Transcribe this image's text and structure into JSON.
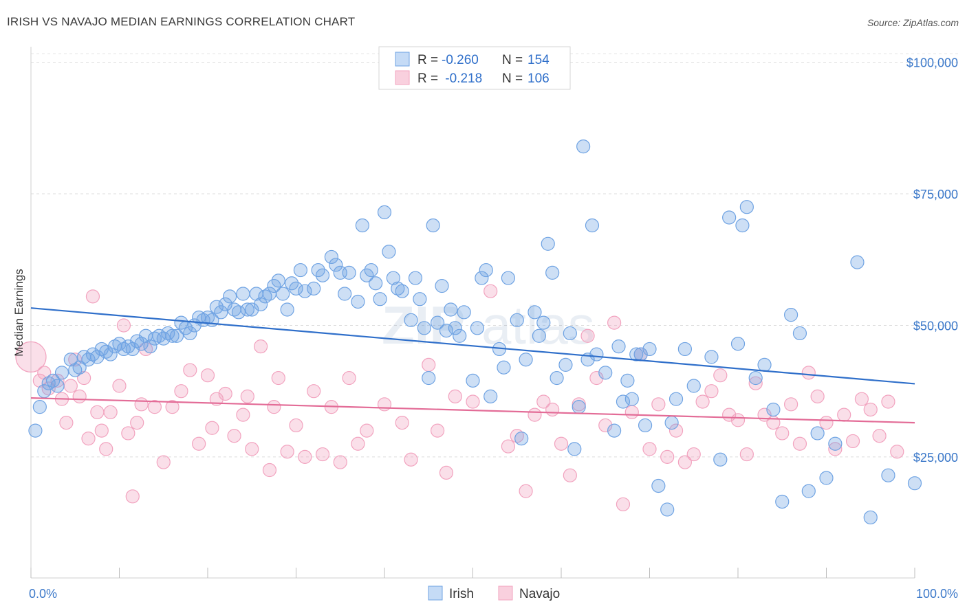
{
  "title": "IRISH VS NAVAJO MEDIAN EARNINGS CORRELATION CHART",
  "source": "Source: ZipAtlas.com",
  "colors": {
    "irish": "#6fa3e3",
    "irish_line": "#2f6fca",
    "navajo": "#f2a3bf",
    "navajo_line": "#e36c97",
    "axis_text": "#3b78c9"
  },
  "legend": {
    "rows": [
      {
        "r_label": "R =",
        "r_value": "-0.260",
        "n_label": "N =",
        "n_value": "154"
      },
      {
        "r_label": "R =",
        "r_value": " -0.218",
        "n_label": "N =",
        "n_value": "106"
      }
    ]
  },
  "chart_data": {
    "type": "scatter",
    "title": "IRISH VS NAVAJO MEDIAN EARNINGS CORRELATION CHART",
    "xlabel": "",
    "ylabel": "Median Earnings",
    "xlim": [
      0,
      100
    ],
    "ylim": [
      2000,
      104000
    ],
    "x_tick_labels": [
      "0.0%",
      "100.0%"
    ],
    "y_ticks": [
      25000,
      50000,
      75000,
      100000
    ],
    "y_tick_labels": [
      "$25,000",
      "$50,000",
      "$75,000",
      "$100,000"
    ],
    "grid": "horizontal dashed",
    "legend_position": "top-center",
    "watermark": "ZIPatlas",
    "series": [
      {
        "name": "Irish",
        "trend": {
          "x": [
            0,
            100
          ],
          "y": [
            53300,
            38900
          ]
        },
        "points": [
          [
            0.5,
            30000
          ],
          [
            1,
            34500
          ],
          [
            1.5,
            37500
          ],
          [
            2,
            39000
          ],
          [
            2.5,
            39500
          ],
          [
            3,
            38500
          ],
          [
            3.5,
            41000
          ],
          [
            4.5,
            43500
          ],
          [
            5,
            41500
          ],
          [
            5.5,
            42000
          ],
          [
            6,
            44000
          ],
          [
            6.5,
            43500
          ],
          [
            7,
            44500
          ],
          [
            7.5,
            44000
          ],
          [
            8,
            45500
          ],
          [
            8.5,
            45000
          ],
          [
            9,
            44500
          ],
          [
            9.5,
            46000
          ],
          [
            10,
            46500
          ],
          [
            10.5,
            45500
          ],
          [
            11,
            46000
          ],
          [
            11.5,
            45500
          ],
          [
            12,
            47000
          ],
          [
            12.5,
            46500
          ],
          [
            13,
            48000
          ],
          [
            13.5,
            46000
          ],
          [
            14,
            47500
          ],
          [
            14.5,
            48000
          ],
          [
            15,
            47500
          ],
          [
            15.5,
            48500
          ],
          [
            16,
            48000
          ],
          [
            16.5,
            48000
          ],
          [
            17,
            50500
          ],
          [
            17.5,
            49500
          ],
          [
            18,
            48500
          ],
          [
            18.5,
            50000
          ],
          [
            19,
            51500
          ],
          [
            19.5,
            51000
          ],
          [
            20,
            51500
          ],
          [
            20.5,
            51000
          ],
          [
            21,
            53500
          ],
          [
            21.5,
            52500
          ],
          [
            22,
            54000
          ],
          [
            22.5,
            55500
          ],
          [
            23,
            53000
          ],
          [
            23.5,
            52500
          ],
          [
            24,
            56000
          ],
          [
            24.5,
            53000
          ],
          [
            25,
            53000
          ],
          [
            25.5,
            56000
          ],
          [
            26,
            54000
          ],
          [
            26.5,
            55500
          ],
          [
            27,
            56000
          ],
          [
            27.5,
            57500
          ],
          [
            28,
            58500
          ],
          [
            28.5,
            56000
          ],
          [
            29,
            53000
          ],
          [
            29.5,
            58000
          ],
          [
            30,
            57000
          ],
          [
            30.5,
            60500
          ],
          [
            31,
            56500
          ],
          [
            32,
            57000
          ],
          [
            32.5,
            60500
          ],
          [
            33,
            59500
          ],
          [
            34,
            63000
          ],
          [
            34.5,
            61500
          ],
          [
            35,
            60000
          ],
          [
            35.5,
            56000
          ],
          [
            36,
            60000
          ],
          [
            37,
            54500
          ],
          [
            37.5,
            69000
          ],
          [
            38,
            59500
          ],
          [
            38.5,
            60500
          ],
          [
            39,
            58000
          ],
          [
            39.5,
            55000
          ],
          [
            40,
            71500
          ],
          [
            40.5,
            64000
          ],
          [
            41,
            59000
          ],
          [
            41.5,
            57000
          ],
          [
            42,
            56500
          ],
          [
            43,
            51000
          ],
          [
            43.5,
            59000
          ],
          [
            44,
            55000
          ],
          [
            44.5,
            49500
          ],
          [
            45,
            40000
          ],
          [
            45.5,
            69000
          ],
          [
            46,
            50500
          ],
          [
            46.5,
            57500
          ],
          [
            47,
            49000
          ],
          [
            47.5,
            53000
          ],
          [
            48,
            49500
          ],
          [
            48.5,
            48000
          ],
          [
            49,
            52500
          ],
          [
            50,
            39500
          ],
          [
            50.5,
            49500
          ],
          [
            51,
            59000
          ],
          [
            51.5,
            60500
          ],
          [
            52,
            36500
          ],
          [
            53,
            45500
          ],
          [
            53.5,
            42000
          ],
          [
            54,
            59000
          ],
          [
            55,
            51000
          ],
          [
            55.5,
            28500
          ],
          [
            56,
            43500
          ],
          [
            57,
            52500
          ],
          [
            57.5,
            48000
          ],
          [
            58,
            50500
          ],
          [
            58.5,
            65500
          ],
          [
            59,
            60000
          ],
          [
            59.5,
            40000
          ],
          [
            60.5,
            42500
          ],
          [
            61,
            48500
          ],
          [
            61.5,
            26500
          ],
          [
            62,
            34500
          ],
          [
            63,
            43500
          ],
          [
            63.5,
            69000
          ],
          [
            64,
            44500
          ],
          [
            65,
            41000
          ],
          [
            66,
            30000
          ],
          [
            66.5,
            46000
          ],
          [
            67,
            35500
          ],
          [
            67.5,
            39500
          ],
          [
            68,
            36000
          ],
          [
            68.5,
            44500
          ],
          [
            69,
            44500
          ],
          [
            69.5,
            31000
          ],
          [
            70,
            45500
          ],
          [
            71,
            19500
          ],
          [
            72,
            15000
          ],
          [
            72.5,
            31500
          ],
          [
            73,
            36000
          ],
          [
            74,
            45500
          ],
          [
            75,
            38500
          ],
          [
            77,
            44000
          ],
          [
            78,
            24500
          ],
          [
            79,
            70500
          ],
          [
            80,
            46500
          ],
          [
            80.5,
            69000
          ],
          [
            81,
            72500
          ],
          [
            82,
            40000
          ],
          [
            83,
            42500
          ],
          [
            84,
            34000
          ],
          [
            85,
            16500
          ],
          [
            86,
            52000
          ],
          [
            87,
            48500
          ],
          [
            88,
            18500
          ],
          [
            89,
            29500
          ],
          [
            90,
            21000
          ],
          [
            91,
            27500
          ],
          [
            93.5,
            62000
          ],
          [
            95,
            13500
          ],
          [
            97,
            21500
          ],
          [
            100,
            20000
          ],
          [
            62.5,
            84000
          ]
        ]
      },
      {
        "name": "Navajo",
        "trend": {
          "x": [
            0,
            100
          ],
          "y": [
            36200,
            31500
          ]
        },
        "points": [
          [
            0,
            44000
          ],
          [
            1,
            39500
          ],
          [
            1.5,
            41000
          ],
          [
            2,
            38000
          ],
          [
            3,
            39500
          ],
          [
            3.5,
            36000
          ],
          [
            4,
            31500
          ],
          [
            4.5,
            38500
          ],
          [
            5,
            43500
          ],
          [
            5.5,
            36500
          ],
          [
            6,
            40000
          ],
          [
            6.5,
            28500
          ],
          [
            7,
            55500
          ],
          [
            7.5,
            33500
          ],
          [
            8,
            30000
          ],
          [
            8.5,
            26500
          ],
          [
            9,
            33500
          ],
          [
            10,
            38500
          ],
          [
            10.5,
            50000
          ],
          [
            11,
            29500
          ],
          [
            11.5,
            17500
          ],
          [
            12,
            31500
          ],
          [
            12.5,
            35000
          ],
          [
            13,
            45500
          ],
          [
            14,
            34500
          ],
          [
            15,
            24000
          ],
          [
            16,
            34500
          ],
          [
            17,
            37500
          ],
          [
            18,
            41500
          ],
          [
            19,
            27500
          ],
          [
            20,
            40500
          ],
          [
            20.5,
            30500
          ],
          [
            21,
            36000
          ],
          [
            22,
            37000
          ],
          [
            23,
            29000
          ],
          [
            24,
            33000
          ],
          [
            24.5,
            36500
          ],
          [
            25,
            26500
          ],
          [
            26,
            46000
          ],
          [
            27,
            22500
          ],
          [
            27.5,
            34500
          ],
          [
            28,
            40000
          ],
          [
            29,
            26000
          ],
          [
            30,
            31000
          ],
          [
            31,
            25000
          ],
          [
            32,
            37500
          ],
          [
            33,
            25500
          ],
          [
            34,
            34500
          ],
          [
            35,
            24000
          ],
          [
            36,
            40000
          ],
          [
            37,
            27500
          ],
          [
            38,
            30000
          ],
          [
            40,
            35000
          ],
          [
            42,
            31500
          ],
          [
            43,
            24500
          ],
          [
            45,
            42500
          ],
          [
            46,
            30000
          ],
          [
            47,
            22000
          ],
          [
            48,
            36500
          ],
          [
            50,
            35500
          ],
          [
            52,
            56500
          ],
          [
            54,
            27000
          ],
          [
            55,
            29000
          ],
          [
            56,
            18500
          ],
          [
            57,
            33000
          ],
          [
            58,
            35500
          ],
          [
            59,
            34000
          ],
          [
            60,
            27500
          ],
          [
            61,
            21500
          ],
          [
            62,
            35000
          ],
          [
            63,
            48000
          ],
          [
            64,
            40000
          ],
          [
            65,
            31000
          ],
          [
            66,
            50500
          ],
          [
            67,
            16000
          ],
          [
            68,
            33500
          ],
          [
            69,
            44500
          ],
          [
            70,
            26500
          ],
          [
            71,
            35000
          ],
          [
            72,
            25000
          ],
          [
            73,
            30000
          ],
          [
            74,
            24000
          ],
          [
            75,
            25500
          ],
          [
            76,
            35500
          ],
          [
            77,
            37500
          ],
          [
            78,
            40500
          ],
          [
            79,
            33000
          ],
          [
            80,
            32000
          ],
          [
            81,
            25500
          ],
          [
            82,
            39000
          ],
          [
            83,
            33000
          ],
          [
            84,
            31500
          ],
          [
            85,
            29500
          ],
          [
            86,
            35000
          ],
          [
            87,
            27500
          ],
          [
            88,
            41000
          ],
          [
            89,
            36500
          ],
          [
            90,
            31500
          ],
          [
            91,
            26500
          ],
          [
            92,
            33000
          ],
          [
            93,
            28000
          ],
          [
            94,
            36000
          ],
          [
            95,
            34000
          ],
          [
            96,
            29000
          ],
          [
            97,
            35500
          ],
          [
            98,
            26000
          ]
        ]
      }
    ]
  }
}
